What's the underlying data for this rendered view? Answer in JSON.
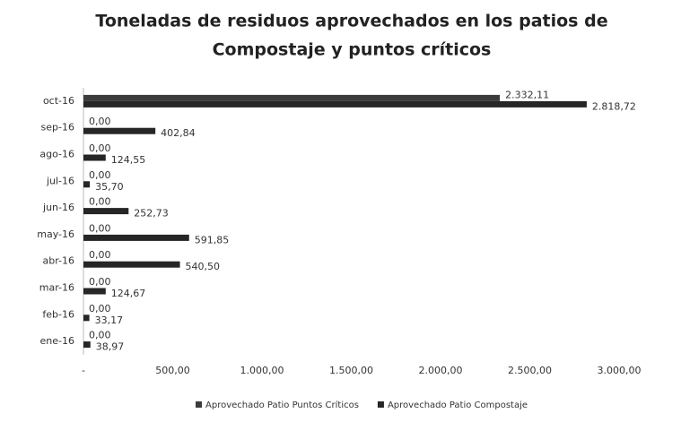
{
  "chart_data": {
    "type": "hbar",
    "title": [
      "Toneladas de residuos aprovechados en los patios de",
      "Compostaje  y puntos críticos"
    ],
    "categories": [
      "ene-16",
      "feb-16",
      "mar-16",
      "abr-16",
      "may-16",
      "jun-16",
      "jul-16",
      "ago-16",
      "sep-16",
      "oct-16"
    ],
    "series": [
      {
        "name": "Aprovechado Patio Puntos Críticos",
        "color": "#3c3c3c",
        "values": [
          0,
          0,
          0,
          0,
          0,
          0,
          0,
          0,
          0,
          2332.11
        ],
        "value_labels": [
          "0,00",
          "0,00",
          "0,00",
          "0,00",
          "0,00",
          "0,00",
          "0,00",
          "0,00",
          "0,00",
          "2.332,11"
        ]
      },
      {
        "name": "Aprovechado Patio Compostaje",
        "color": "#262626",
        "values": [
          38.97,
          33.17,
          124.67,
          540.5,
          591.85,
          252.73,
          35.7,
          124.55,
          402.84,
          2818.72
        ],
        "value_labels": [
          "38,97",
          "33,17",
          "124,67",
          "540,50",
          "591,85",
          "252,73",
          "35,70",
          "124,55",
          "402,84",
          "2.818,72"
        ]
      }
    ],
    "xlim": [
      0,
      3000
    ],
    "xticks": [
      {
        "value": 0,
        "label": "-"
      },
      {
        "value": 500,
        "label": "500,00"
      },
      {
        "value": 1000,
        "label": "1.000,00"
      },
      {
        "value": 1500,
        "label": "1.500,00"
      },
      {
        "value": 2000,
        "label": "2.000,00"
      },
      {
        "value": 2500,
        "label": "2.500,00"
      },
      {
        "value": 3000,
        "label": "3.000,00"
      }
    ],
    "legend": "bottom"
  }
}
